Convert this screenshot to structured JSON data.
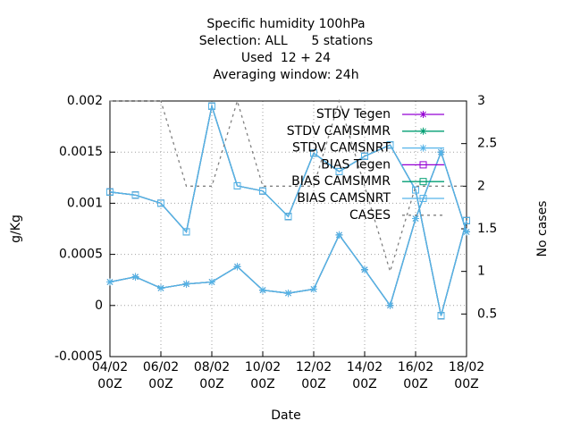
{
  "chart_data": {
    "type": "line",
    "title": [
      "Specific humidity 100hPa",
      "Selection: ALL      5 stations",
      "Used  12 + 24",
      "Averaging window: 24h"
    ],
    "xlabel": "Date",
    "ylabel": "g/Kg",
    "y2label": "No cases",
    "x": [
      4,
      5,
      6,
      7,
      8,
      9,
      10,
      11,
      12,
      13,
      14,
      15,
      16,
      17,
      18
    ],
    "xlim": [
      4,
      18
    ],
    "xticks": [
      {
        "value": 4,
        "label": "04/02 00Z"
      },
      {
        "value": 6,
        "label": "06/02 00Z"
      },
      {
        "value": 8,
        "label": "08/02 00Z"
      },
      {
        "value": 10,
        "label": "10/02 00Z"
      },
      {
        "value": 12,
        "label": "12/02 00Z"
      },
      {
        "value": 14,
        "label": "14/02 00Z"
      },
      {
        "value": 16,
        "label": "16/02 00Z"
      },
      {
        "value": 18,
        "label": "18/02 00Z"
      }
    ],
    "ylim": [
      -0.0005,
      0.002
    ],
    "yticks": [
      -0.0005,
      0,
      0.0005,
      0.001,
      0.0015,
      0.002
    ],
    "y2lim": [
      0,
      3
    ],
    "y2ticks": [
      0.5,
      1,
      1.5,
      2,
      2.5,
      3
    ],
    "grid": true,
    "legend": "top-right",
    "series": [
      {
        "name": "STDV Tegen",
        "color": "#9400d3",
        "marker": "star",
        "values": [
          0.00023,
          0.00028,
          0.00017,
          0.00021,
          0.00023,
          0.00038,
          0.00015,
          0.00012,
          0.00016,
          0.00069,
          0.00035,
          0.0,
          0.00085,
          0.0015,
          0.00072
        ]
      },
      {
        "name": "STDV CAMSMMR",
        "color": "#009e73",
        "marker": "star",
        "values": [
          0.00023,
          0.00028,
          0.00017,
          0.00021,
          0.00023,
          0.00038,
          0.00015,
          0.00012,
          0.00016,
          0.00069,
          0.00035,
          0.0,
          0.00085,
          0.0015,
          0.00072
        ]
      },
      {
        "name": "STDV CAMSNRT",
        "color": "#56b4e9",
        "marker": "star",
        "values": [
          0.00023,
          0.00028,
          0.00017,
          0.00021,
          0.00023,
          0.00038,
          0.00015,
          0.00012,
          0.00016,
          0.00069,
          0.00035,
          0.0,
          0.00085,
          0.0015,
          0.00072
        ]
      },
      {
        "name": "BIAS Tegen",
        "color": "#9400d3",
        "marker": "square",
        "values": [
          0.00111,
          0.00108,
          0.001,
          0.00072,
          0.00195,
          0.00117,
          0.00112,
          0.00087,
          0.00149,
          0.00131,
          0.00146,
          0.00157,
          0.00113,
          -0.0001,
          0.00083
        ]
      },
      {
        "name": "BIAS CAMSMMR",
        "color": "#009e73",
        "marker": "square",
        "values": [
          0.00111,
          0.00108,
          0.001,
          0.00072,
          0.00195,
          0.00117,
          0.00112,
          0.00087,
          0.00149,
          0.00131,
          0.00146,
          0.00157,
          0.00113,
          -0.0001,
          0.00083
        ]
      },
      {
        "name": "BIAS CAMSNRT",
        "color": "#56b4e9",
        "marker": "square",
        "values": [
          0.00111,
          0.00108,
          0.001,
          0.00072,
          0.00195,
          0.00117,
          0.00112,
          0.00087,
          0.00149,
          0.00131,
          0.00146,
          0.00157,
          0.00113,
          -0.0001,
          0.00083
        ]
      },
      {
        "name": "CASES",
        "color": "#808080",
        "dash": true,
        "axis": "y2",
        "values": [
          3,
          3,
          3,
          2,
          2,
          3,
          2,
          2,
          2,
          3,
          2,
          1,
          2,
          2,
          2
        ]
      }
    ]
  }
}
